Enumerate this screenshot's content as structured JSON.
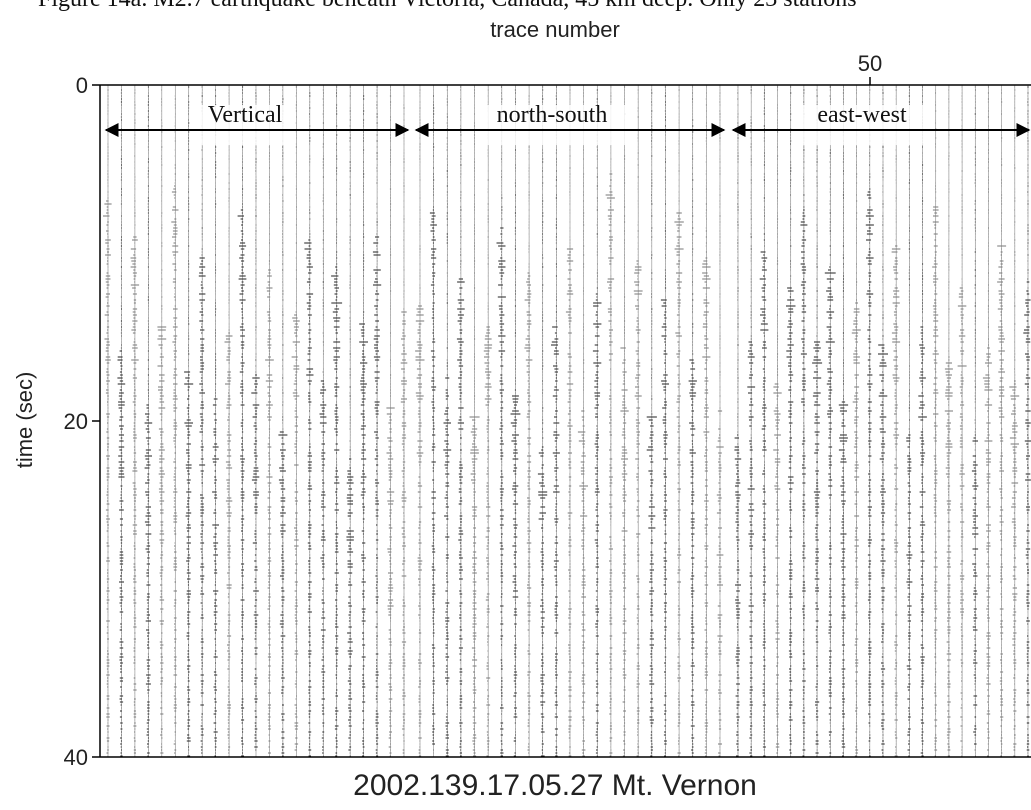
{
  "caption": "Figure 14a. M2.7 earthquake beneath Victoria, Canada, 45 km deep. Only 23 stations",
  "chart_data": {
    "type": "record-section",
    "title": "2002.139.17.05.27 Mt. Vernon",
    "x_label": "trace number",
    "y_label": "time (sec)",
    "xlim": [
      0,
      60
    ],
    "xticks": [
      50
    ],
    "ylim": [
      0,
      40
    ],
    "yticks": [
      0,
      20,
      40
    ],
    "y_inverted": true,
    "annotations": [
      "Vertical",
      "north-south",
      "east-west"
    ]
  }
}
